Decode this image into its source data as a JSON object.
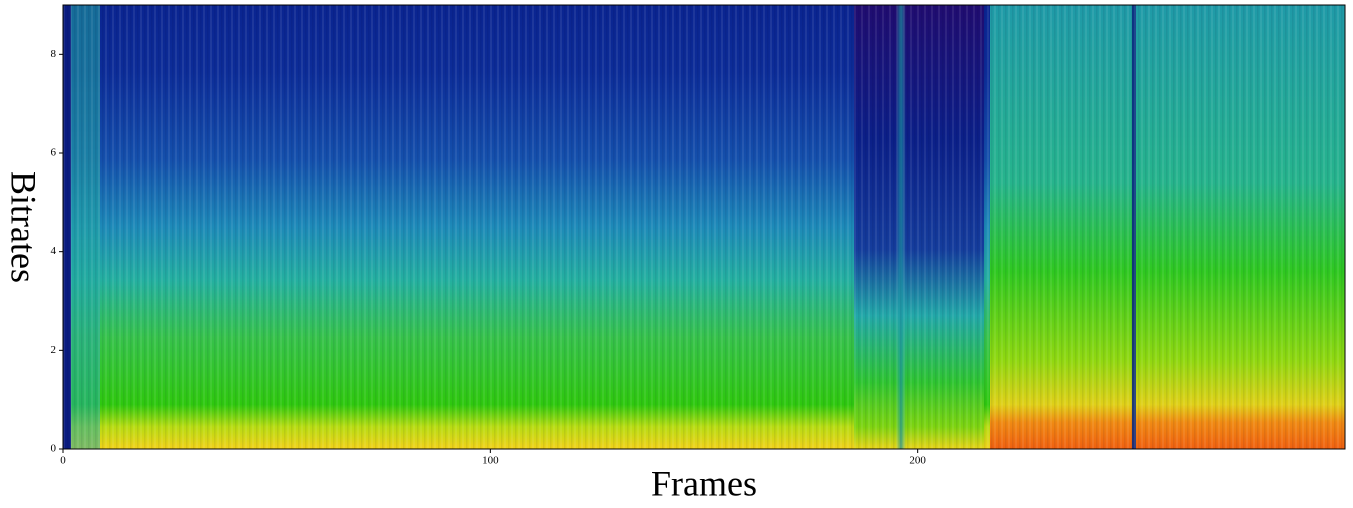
{
  "chart_data": {
    "type": "heatmap",
    "x_label": "Frames",
    "y_label": "Bitrates",
    "xlim": [
      0,
      300
    ],
    "xticks": [
      0,
      100,
      200
    ],
    "ylim": [
      0,
      9
    ],
    "yticks": [
      0,
      2,
      4,
      6,
      8
    ]
  }
}
